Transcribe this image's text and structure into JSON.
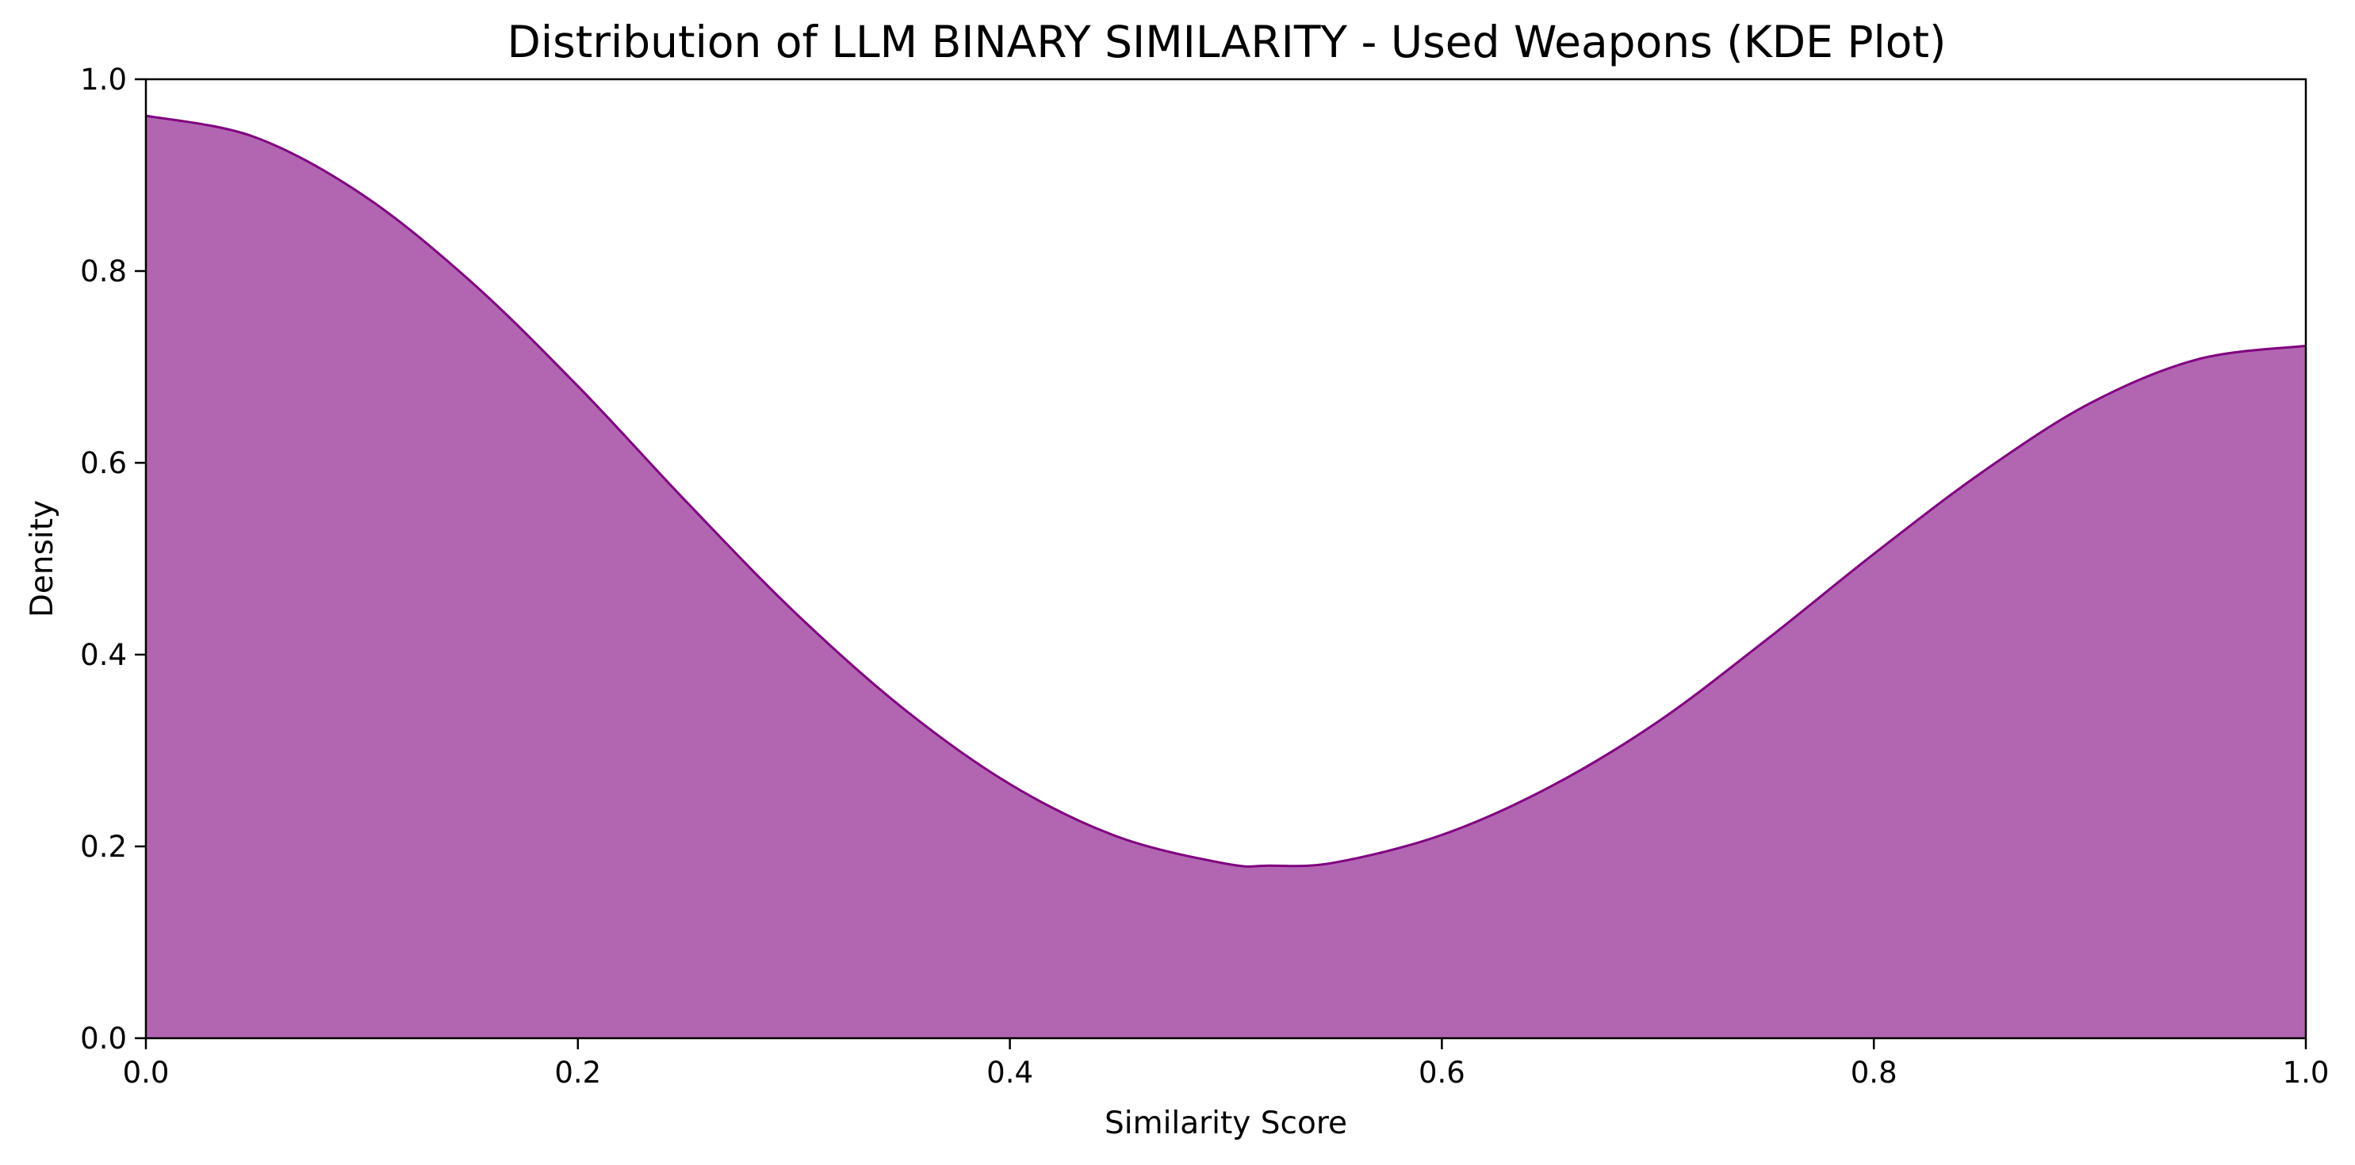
{
  "chart_data": {
    "type": "area",
    "title": "Distribution of LLM BINARY SIMILARITY - Used Weapons (KDE Plot)",
    "xlabel": "Similarity Score",
    "ylabel": "Density",
    "xlim": [
      0.0,
      1.0
    ],
    "ylim": [
      0.0,
      1.0
    ],
    "x_ticks": [
      "0.0",
      "0.2",
      "0.4",
      "0.6",
      "0.8",
      "1.0"
    ],
    "y_ticks": [
      "0.0",
      "0.2",
      "0.4",
      "0.6",
      "0.8",
      "1.0"
    ],
    "grid": false,
    "legend": "none",
    "fill_color": "#b266b2",
    "line_color": "#800080",
    "series": [
      {
        "x": [
          0.0,
          0.05,
          0.1,
          0.15,
          0.2,
          0.25,
          0.3,
          0.35,
          0.4,
          0.45,
          0.5,
          0.52,
          0.55,
          0.6,
          0.65,
          0.7,
          0.75,
          0.8,
          0.85,
          0.9,
          0.95,
          1.0
        ],
        "y": [
          0.962,
          0.94,
          0.88,
          0.79,
          0.68,
          0.56,
          0.445,
          0.345,
          0.265,
          0.21,
          0.182,
          0.18,
          0.183,
          0.212,
          0.262,
          0.33,
          0.415,
          0.505,
          0.59,
          0.662,
          0.708,
          0.722
        ]
      }
    ]
  }
}
